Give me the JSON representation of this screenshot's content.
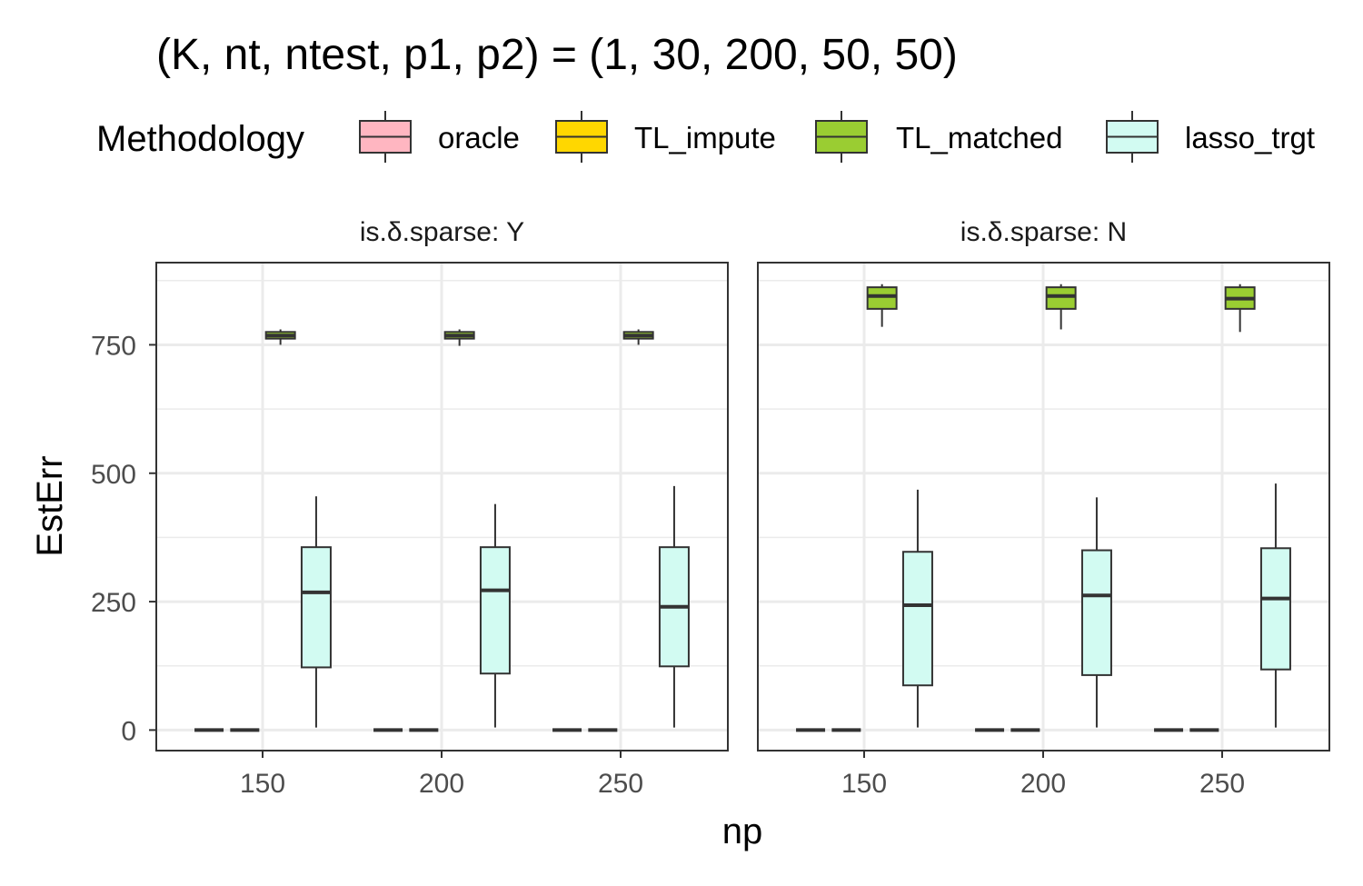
{
  "chart_data": {
    "type": "boxplot",
    "title": "(K, nt, ntest, p1, p2) = (1, 30, 200, 50, 50)",
    "xlabel": "np",
    "ylabel": "EstErr",
    "ylim": [
      -40,
      910
    ],
    "y_ticks": [
      0,
      250,
      500,
      750
    ],
    "y_tick_labels": [
      "0",
      "250",
      "500",
      "750"
    ],
    "categories": [
      "150",
      "200",
      "250"
    ],
    "legend": {
      "title": "Methodology",
      "position": "top",
      "items": [
        {
          "label": "oracle",
          "color": "#FFB6C1"
        },
        {
          "label": "TL_impute",
          "color": "#FFD700"
        },
        {
          "label": "TL_matched",
          "color": "#9ACD32"
        },
        {
          "label": "lasso_trgt",
          "color": "#D2FBF2"
        }
      ]
    },
    "facets": [
      {
        "label": "is.δ.sparse: Y",
        "groups": [
          {
            "category": "150",
            "boxes": [
              {
                "method": "oracle",
                "min": 0,
                "q1": 0,
                "median": 0,
                "q3": 0,
                "max": 0
              },
              {
                "method": "TL_impute",
                "min": 0,
                "q1": 0,
                "median": 0,
                "q3": 0,
                "max": 0
              },
              {
                "method": "TL_matched",
                "min": 750,
                "q1": 762,
                "median": 768,
                "q3": 775,
                "max": 780
              },
              {
                "method": "lasso_trgt",
                "min": 5,
                "q1": 122,
                "median": 268,
                "q3": 356,
                "max": 455
              }
            ]
          },
          {
            "category": "200",
            "boxes": [
              {
                "method": "oracle",
                "min": 0,
                "q1": 0,
                "median": 0,
                "q3": 0,
                "max": 0
              },
              {
                "method": "TL_impute",
                "min": 0,
                "q1": 0,
                "median": 0,
                "q3": 0,
                "max": 0
              },
              {
                "method": "TL_matched",
                "min": 748,
                "q1": 762,
                "median": 768,
                "q3": 775,
                "max": 780
              },
              {
                "method": "lasso_trgt",
                "min": 5,
                "q1": 110,
                "median": 272,
                "q3": 356,
                "max": 440
              }
            ]
          },
          {
            "category": "250",
            "boxes": [
              {
                "method": "oracle",
                "min": 0,
                "q1": 0,
                "median": 0,
                "q3": 0,
                "max": 0
              },
              {
                "method": "TL_impute",
                "min": 0,
                "q1": 0,
                "median": 0,
                "q3": 0,
                "max": 0
              },
              {
                "method": "TL_matched",
                "min": 750,
                "q1": 762,
                "median": 768,
                "q3": 775,
                "max": 780
              },
              {
                "method": "lasso_trgt",
                "min": 5,
                "q1": 124,
                "median": 240,
                "q3": 356,
                "max": 475
              }
            ]
          }
        ]
      },
      {
        "label": "is.δ.sparse: N",
        "groups": [
          {
            "category": "150",
            "boxes": [
              {
                "method": "oracle",
                "min": 0,
                "q1": 0,
                "median": 0,
                "q3": 0,
                "max": 0
              },
              {
                "method": "TL_impute",
                "min": 0,
                "q1": 0,
                "median": 0,
                "q3": 0,
                "max": 0
              },
              {
                "method": "TL_matched",
                "min": 785,
                "q1": 820,
                "median": 845,
                "q3": 862,
                "max": 868
              },
              {
                "method": "lasso_trgt",
                "min": 5,
                "q1": 87,
                "median": 243,
                "q3": 347,
                "max": 468
              }
            ]
          },
          {
            "category": "200",
            "boxes": [
              {
                "method": "oracle",
                "min": 0,
                "q1": 0,
                "median": 0,
                "q3": 0,
                "max": 0
              },
              {
                "method": "TL_impute",
                "min": 0,
                "q1": 0,
                "median": 0,
                "q3": 0,
                "max": 0
              },
              {
                "method": "TL_matched",
                "min": 780,
                "q1": 820,
                "median": 845,
                "q3": 862,
                "max": 868
              },
              {
                "method": "lasso_trgt",
                "min": 5,
                "q1": 107,
                "median": 262,
                "q3": 350,
                "max": 453
              }
            ]
          },
          {
            "category": "250",
            "boxes": [
              {
                "method": "oracle",
                "min": 0,
                "q1": 0,
                "median": 0,
                "q3": 0,
                "max": 0
              },
              {
                "method": "TL_impute",
                "min": 0,
                "q1": 0,
                "median": 0,
                "q3": 0,
                "max": 0
              },
              {
                "method": "TL_matched",
                "min": 775,
                "q1": 820,
                "median": 840,
                "q3": 862,
                "max": 868
              },
              {
                "method": "lasso_trgt",
                "min": 5,
                "q1": 118,
                "median": 256,
                "q3": 354,
                "max": 480
              }
            ]
          }
        ]
      }
    ]
  }
}
